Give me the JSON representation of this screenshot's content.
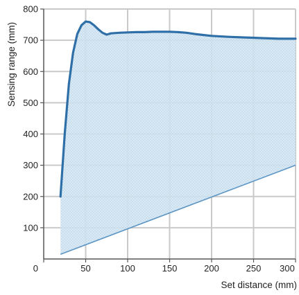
{
  "chart_data": {
    "type": "area",
    "title": "",
    "xlabel": "Set distance (mm)",
    "ylabel": "Sensing range (mm)",
    "xlim": [
      0,
      300
    ],
    "ylim": [
      0,
      800
    ],
    "x_ticks": [
      "0",
      "50",
      "100",
      "150",
      "200",
      "250",
      "300"
    ],
    "y_ticks": [
      "100",
      "200",
      "300",
      "400",
      "500",
      "600",
      "700",
      "800"
    ],
    "grid": true,
    "legend": "none",
    "series": [
      {
        "role": "upper-boundary",
        "x": [
          20,
          25,
          30,
          35,
          40,
          45,
          50,
          55,
          60,
          65,
          70,
          75,
          80,
          90,
          100,
          110,
          120,
          130,
          140,
          150,
          160,
          170,
          180,
          190,
          200,
          220,
          240,
          260,
          280,
          300
        ],
        "y": [
          200,
          400,
          560,
          660,
          720,
          748,
          760,
          758,
          748,
          735,
          724,
          718,
          722,
          724,
          725,
          726,
          726,
          727,
          727,
          727,
          726,
          724,
          720,
          717,
          714,
          711,
          709,
          707,
          705,
          705
        ]
      },
      {
        "role": "lower-boundary",
        "x": [
          20,
          300
        ],
        "y": [
          15,
          300
        ]
      }
    ],
    "colors": {
      "upper_line": "#2e6fa7",
      "lower_line": "#5b95c4",
      "fill": "#d6e8f4",
      "dots": "#a9c7df",
      "grid": "#c9c9c9",
      "axes": "#555555"
    }
  }
}
